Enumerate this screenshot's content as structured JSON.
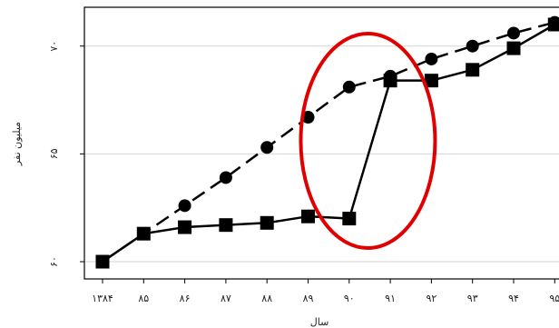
{
  "chart_data": {
    "type": "line",
    "xlabel": "سال",
    "ylabel": "میلیون نفر",
    "categories": [
      "۱۳۸۴",
      "۸۵",
      "۸۶",
      "۸۷",
      "۸۸",
      "۸۹",
      "۹۰",
      "۹۱",
      "۹۲",
      "۹۳",
      "۹۴",
      "۹۵"
    ],
    "y_ticks": [
      {
        "value": 60,
        "label": "۶۰"
      },
      {
        "value": 65,
        "label": "۶۵"
      },
      {
        "value": 70,
        "label": "۷۰"
      }
    ],
    "ylim": [
      59.2,
      71.8
    ],
    "grid": true,
    "series": [
      {
        "style": "dashed",
        "marker": "circle",
        "color": "#000000",
        "values": [
          60.0,
          61.3,
          62.6,
          63.9,
          65.3,
          66.7,
          68.1,
          68.6,
          69.4,
          70.0,
          70.6,
          71.1
        ]
      },
      {
        "style": "solid",
        "marker": "square",
        "color": "#000000",
        "values": [
          60.0,
          61.3,
          61.6,
          61.7,
          61.8,
          62.1,
          62.0,
          68.4,
          68.4,
          68.9,
          69.9,
          71.0
        ]
      }
    ],
    "annotation": {
      "shape": "ellipse",
      "color": "#e00000",
      "around_categories": [
        "۹۰",
        "۹۱"
      ]
    }
  }
}
